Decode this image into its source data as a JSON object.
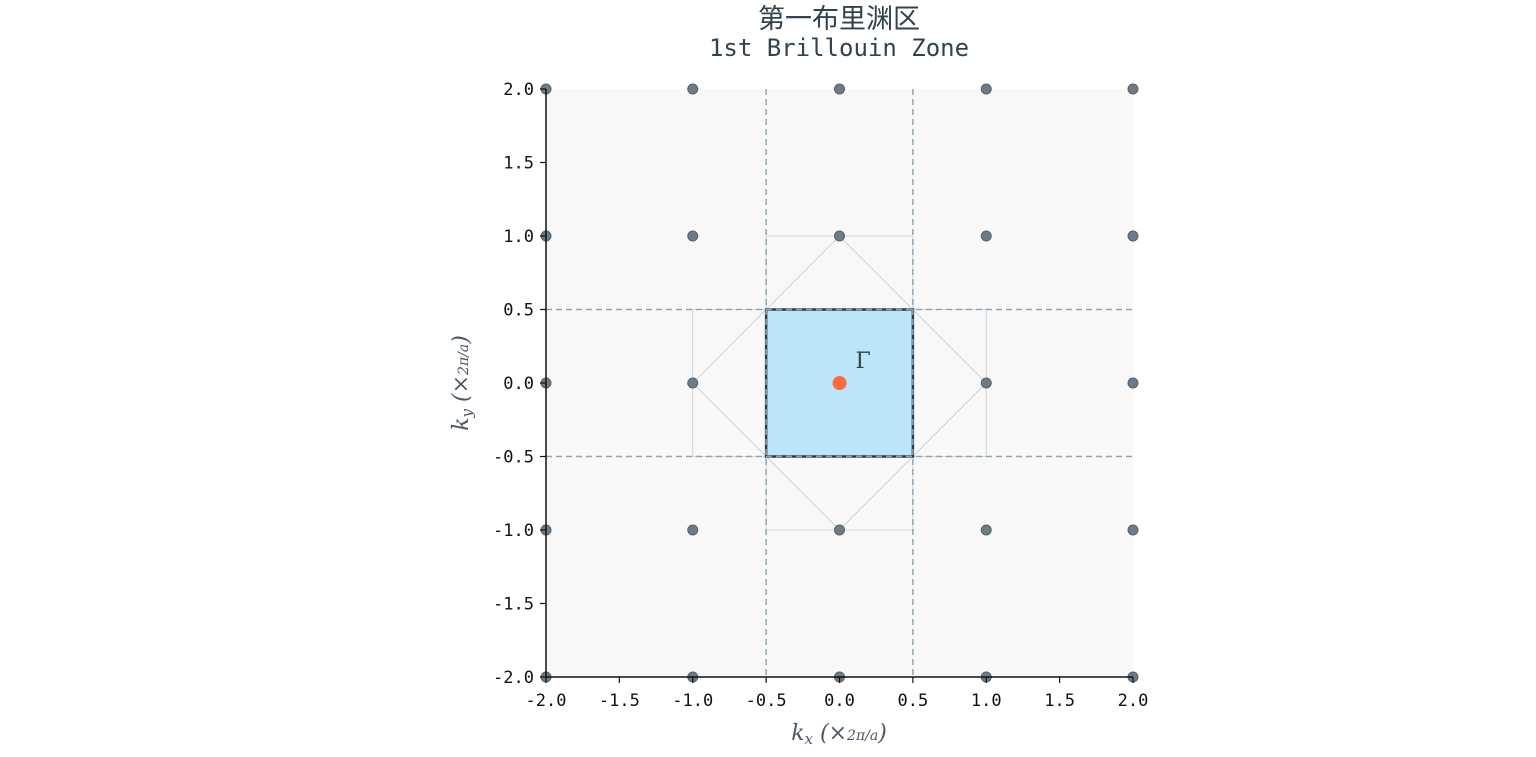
{
  "chart_data": {
    "type": "scatter",
    "title": "第一布里渊区",
    "subtitle": "1st Brillouin Zone",
    "xlabel": "k_x (×2π/a)",
    "ylabel": "k_y (×2π/a)",
    "xlim": [
      -2.0,
      2.0
    ],
    "ylim": [
      -2.0,
      2.0
    ],
    "xticks": [
      "-2.0",
      "-1.5",
      "-1.0",
      "-0.5",
      "0.0",
      "0.5",
      "1.0",
      "1.5",
      "2.0"
    ],
    "yticks": [
      "-2.0",
      "-1.5",
      "-1.0",
      "-0.5",
      "0.0",
      "0.5",
      "1.0",
      "1.5",
      "2.0"
    ],
    "grid": false,
    "reciprocal_lattice_points": [
      [
        -2,
        -2
      ],
      [
        -1,
        -2
      ],
      [
        0,
        -2
      ],
      [
        1,
        -2
      ],
      [
        2,
        -2
      ],
      [
        -2,
        -1
      ],
      [
        -1,
        -1
      ],
      [
        0,
        -1
      ],
      [
        1,
        -1
      ],
      [
        2,
        -1
      ],
      [
        -2,
        0
      ],
      [
        -1,
        0
      ],
      [
        1,
        0
      ],
      [
        2,
        0
      ],
      [
        -2,
        1
      ],
      [
        -1,
        1
      ],
      [
        0,
        1
      ],
      [
        1,
        1
      ],
      [
        2,
        1
      ],
      [
        -2,
        2
      ],
      [
        -1,
        2
      ],
      [
        0,
        2
      ],
      [
        1,
        2
      ],
      [
        2,
        2
      ]
    ],
    "gamma_point": {
      "x": 0,
      "y": 0,
      "label": "Γ"
    },
    "first_brillouin_zone": {
      "xmin": -0.5,
      "xmax": 0.5,
      "ymin": -0.5,
      "ymax": 0.5
    },
    "zone_boundaries": {
      "vertical": [
        -0.5,
        0.5
      ],
      "horizontal": [
        -0.5,
        0.5
      ]
    },
    "construction_lines": [
      [
        [
          0,
          1
        ],
        [
          0.5,
          0.5
        ]
      ],
      [
        [
          0.5,
          0.5
        ],
        [
          1,
          0
        ]
      ],
      [
        [
          1,
          0
        ],
        [
          0.5,
          -0.5
        ]
      ],
      [
        [
          0.5,
          -0.5
        ],
        [
          0,
          -1
        ]
      ],
      [
        [
          0,
          -1
        ],
        [
          -0.5,
          -0.5
        ]
      ],
      [
        [
          -0.5,
          -0.5
        ],
        [
          -1,
          0
        ]
      ],
      [
        [
          -1,
          0
        ],
        [
          -0.5,
          0.5
        ]
      ],
      [
        [
          -0.5,
          0.5
        ],
        [
          0,
          1
        ]
      ],
      [
        [
          -0.5,
          1
        ],
        [
          0.5,
          1
        ]
      ],
      [
        [
          -0.5,
          -1
        ],
        [
          0.5,
          -1
        ]
      ],
      [
        [
          -0.5,
          0.5
        ],
        [
          -0.5,
          1
        ]
      ],
      [
        [
          0.5,
          0.5
        ],
        [
          0.5,
          1
        ]
      ],
      [
        [
          -0.5,
          -0.5
        ],
        [
          -0.5,
          -1
        ]
      ],
      [
        [
          0.5,
          -0.5
        ],
        [
          0.5,
          -1
        ]
      ],
      [
        [
          -1,
          0.5
        ],
        [
          -1,
          -0.5
        ]
      ],
      [
        [
          1,
          0.5
        ],
        [
          1,
          -0.5
        ]
      ],
      [
        [
          -1,
          0.5
        ],
        [
          -0.5,
          0.5
        ]
      ],
      [
        [
          -1,
          -0.5
        ],
        [
          -0.5,
          -0.5
        ]
      ],
      [
        [
          0.5,
          0.5
        ],
        [
          1,
          0.5
        ]
      ],
      [
        [
          0.5,
          -0.5
        ],
        [
          1,
          -0.5
        ]
      ]
    ],
    "colors": {
      "background": "#f8f8f8",
      "lattice_point": "#6e7b84",
      "gamma": "#ff6b3d",
      "zone_fill": "#bbe6fa",
      "zone_edge": "#2e3b45",
      "boundary": "#8fa5b5",
      "construction": "#cfd3d6"
    }
  }
}
